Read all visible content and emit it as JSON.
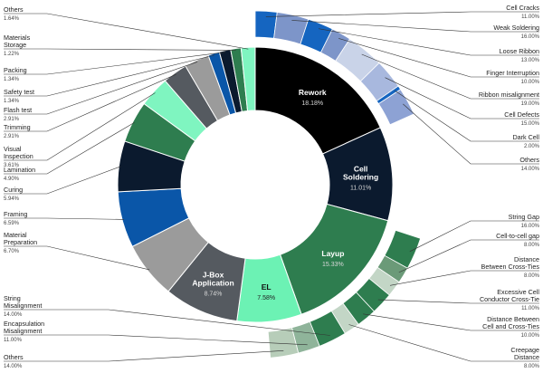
{
  "chart_data": {
    "type": "pie",
    "variant": "donut with breakdown arcs",
    "title": "",
    "main": [
      {
        "name": "Rework",
        "value": 18.18,
        "label_lines": [
          "Rework"
        ],
        "pct": "18.18%",
        "color": "#000000",
        "text_color": "#ffffff"
      },
      {
        "name": "Cell Soldering",
        "value": 11.01,
        "label_lines": [
          "Cell",
          "Soldering"
        ],
        "pct": "11.01%",
        "color": "#0b1a2e",
        "text_color": "#ffffff"
      },
      {
        "name": "Layup",
        "value": 15.33,
        "label_lines": [
          "Layup"
        ],
        "pct": "15.33%",
        "color": "#2e7d4f",
        "text_color": "#ffffff"
      },
      {
        "name": "EL",
        "value": 7.58,
        "label_lines": [
          "EL"
        ],
        "pct": "7.58%",
        "color": "#6cf2b4",
        "text_color": "#111111"
      },
      {
        "name": "J-Box Application",
        "value": 8.74,
        "label_lines": [
          "J-Box",
          "Application"
        ],
        "pct": "8.74%",
        "color": "#555a60",
        "text_color": "#ffffff"
      },
      {
        "name": "Material Preparation",
        "value": 6.7,
        "label_lines": [
          "Material",
          "Preparation"
        ],
        "pct": "6.70%",
        "color": "#9b9b9b",
        "text_color": "#ffffff"
      },
      {
        "name": "Framing",
        "value": 6.59,
        "label_lines": [
          "Framing"
        ],
        "pct": "6.59%",
        "color": "#0a56a8",
        "text_color": "#ffffff"
      },
      {
        "name": "Curing",
        "value": 5.94,
        "label_lines": [
          "Curing"
        ],
        "pct": "5.94%",
        "color": "#0b1a2e",
        "text_color": "#ffffff"
      },
      {
        "name": "Lamination",
        "value": 4.9,
        "label_lines": [
          "Lamination"
        ],
        "pct": "4.90%",
        "color": "#2e7d4f",
        "text_color": "#ffffff"
      },
      {
        "name": "Visual Inspection",
        "value": 3.61,
        "label_lines": [
          "Visual",
          "Inspection"
        ],
        "pct": "3.61%",
        "color": "#7ff5c0",
        "text_color": "#111111"
      },
      {
        "name": "Trimming",
        "value": 2.91,
        "label_lines": [
          "Trimming"
        ],
        "pct": "2.91%",
        "color": "#555a60",
        "text_color": "#ffffff"
      },
      {
        "name": "Flash test",
        "value": 2.91,
        "label_lines": [
          "Flash test"
        ],
        "pct": "2.91%",
        "color": "#9b9b9b",
        "text_color": "#ffffff"
      },
      {
        "name": "Safety test",
        "value": 1.34,
        "label_lines": [
          "Safety test"
        ],
        "pct": "1.34%",
        "color": "#0a56a8",
        "text_color": "#ffffff"
      },
      {
        "name": "Packing",
        "value": 1.34,
        "label_lines": [
          "Packing"
        ],
        "pct": "1.34%",
        "color": "#0b1a2e",
        "text_color": "#ffffff"
      },
      {
        "name": "Materials Storage",
        "value": 1.22,
        "label_lines": [
          "Materials",
          "Storage"
        ],
        "pct": "1.22%",
        "color": "#2e7d4f",
        "text_color": "#ffffff"
      },
      {
        "name": "Others",
        "value": 1.64,
        "label_lines": [
          "Others"
        ],
        "pct": "1.64%",
        "color": "#7ff5c0",
        "text_color": "#111111"
      }
    ],
    "breakdowns": [
      {
        "parent": "Rework",
        "items": [
          {
            "name": "Cell Cracks",
            "value": 11.0,
            "pct": "11.00%",
            "color": "#1565c0"
          },
          {
            "name": "Weak Soldering",
            "value": 16.0,
            "pct": "16.00%",
            "color": "#7d95c9"
          },
          {
            "name": "Loose Ribbon",
            "value": 13.0,
            "pct": "13.00%",
            "color": "#1565c0"
          },
          {
            "name": "Finger Interruption",
            "value": 10.0,
            "pct": "10.00%",
            "color": "#7d95c9"
          },
          {
            "name": "Ribbon misalignment",
            "value": 19.0,
            "pct": "19.00%",
            "color": "#c9d3e8"
          },
          {
            "name": "Cell Defects",
            "value": 15.0,
            "pct": "15.00%",
            "color": "#a8b8de"
          },
          {
            "name": "Dark Cell",
            "value": 2.0,
            "pct": "2.00%",
            "color": "#1565c0"
          },
          {
            "name": "Others",
            "value": 14.0,
            "pct": "14.00%",
            "color": "#8da2d4"
          }
        ]
      },
      {
        "parent": "Layup",
        "items": [
          {
            "name": "String Gap",
            "value": 16.0,
            "pct": "16.00%",
            "color": "#2e7d4f",
            "label_lines": [
              "String Gap"
            ]
          },
          {
            "name": "Cell-to-cell gap",
            "value": 8.0,
            "pct": "8.00%",
            "color": "#6b9a78",
            "label_lines": [
              "Cell-to-cell gap"
            ]
          },
          {
            "name": "Distance Between Cross-Ties",
            "value": 8.0,
            "pct": "8.00%",
            "color": "#c3d6c6",
            "label_lines": [
              "Distance",
              "Between Cross-Ties"
            ]
          },
          {
            "name": "Excessive Cell Conductor Cross-Tie",
            "value": 11.0,
            "pct": "11.00%",
            "color": "#2e7d4f",
            "label_lines": [
              "Excessive Cell",
              "Conductor Cross-Tie"
            ]
          },
          {
            "name": "Distance Between Cell and Cross-Ties",
            "value": 10.0,
            "pct": "10.00%",
            "color": "#2e7d4f",
            "label_lines": [
              "Distance Between",
              "Cell and Cross-Ties"
            ]
          },
          {
            "name": "Creepage Distance",
            "value": 8.0,
            "pct": "8.00%",
            "color": "#c3d6c6",
            "label_lines": [
              "Creepage",
              "Distance"
            ]
          },
          {
            "name": "String Misalignment",
            "value": 14.0,
            "pct": "14.00%",
            "color": "#2e7d4f",
            "label_lines": [
              "String",
              "Misalignment"
            ]
          },
          {
            "name": "Encapsulation Misalignment",
            "value": 11.0,
            "pct": "11.00%",
            "color": "#8fb49a",
            "label_lines": [
              "Encapsulation",
              "Misalignment"
            ]
          },
          {
            "name": "Others",
            "value": 14.0,
            "pct": "14.00%",
            "color": "#b7cdb9",
            "label_lines": [
              "Others"
            ]
          }
        ]
      }
    ]
  }
}
